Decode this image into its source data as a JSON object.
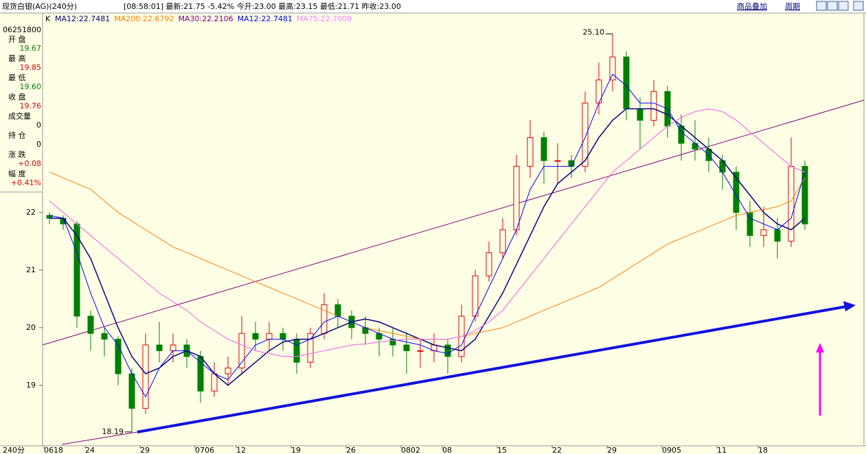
{
  "header": {
    "title": "现货白银(AG)(240分)",
    "quote": "[08:58:01] 最新:21.75 -5.42% 今开:23.00 最高:23.15 最低:21.71 昨收:23.00",
    "overlay_button": "商品叠加",
    "period_button": "周期"
  },
  "info_panel": {
    "code": "06251800",
    "rows": [
      {
        "label": "开 盘",
        "value": "19.67",
        "color": "#008000"
      },
      {
        "label": "最 高",
        "value": "19.85",
        "color": "#e00000"
      },
      {
        "label": "最 低",
        "value": "19.60",
        "color": "#008000"
      },
      {
        "label": "收 盘",
        "value": "19.76",
        "color": "#e00000"
      },
      {
        "label": "成交量",
        "value": "0",
        "color": "#000000"
      },
      {
        "label": "持 仓",
        "value": "0",
        "color": "#000000"
      },
      {
        "label": "涨 跌",
        "value": "+0.08",
        "color": "#e00000"
      },
      {
        "label": "幅 度",
        "value": "+0.41%",
        "color": "#e00000"
      }
    ]
  },
  "period_label": "240分",
  "chart_data": {
    "type": "candlestick",
    "legend_prefix": "K",
    "categories": [
      "0618",
      null,
      null,
      "24",
      null,
      null,
      null,
      "29",
      null,
      null,
      null,
      "0706",
      null,
      null,
      "12",
      null,
      null,
      null,
      "19",
      null,
      null,
      null,
      "26",
      null,
      null,
      null,
      "0802",
      null,
      null,
      "08",
      null,
      null,
      null,
      "15",
      null,
      null,
      null,
      "22",
      null,
      null,
      null,
      "29",
      null,
      null,
      null,
      "0905",
      null,
      null,
      null,
      "11",
      null,
      null,
      "18",
      null,
      null,
      null
    ],
    "candles": [
      [
        21.95,
        22.0,
        21.8,
        21.9
      ],
      [
        21.9,
        21.95,
        21.7,
        21.8
      ],
      [
        21.8,
        21.85,
        20.0,
        20.2
      ],
      [
        20.2,
        20.3,
        19.6,
        19.9
      ],
      [
        19.9,
        20.0,
        19.5,
        19.8
      ],
      [
        19.8,
        19.85,
        19.0,
        19.2
      ],
      [
        19.2,
        19.3,
        18.19,
        18.6
      ],
      [
        18.6,
        19.9,
        18.5,
        19.7
      ],
      [
        19.7,
        20.1,
        19.4,
        19.6
      ],
      [
        19.6,
        19.9,
        19.4,
        19.7
      ],
      [
        19.7,
        19.8,
        19.3,
        19.5
      ],
      [
        19.5,
        19.6,
        18.7,
        18.9
      ],
      [
        18.9,
        19.4,
        18.8,
        19.2
      ],
      [
        19.2,
        19.5,
        19.0,
        19.3
      ],
      [
        19.3,
        20.2,
        19.2,
        19.9
      ],
      [
        19.9,
        20.1,
        19.6,
        19.8
      ],
      [
        19.8,
        20.1,
        19.6,
        19.9
      ],
      [
        19.9,
        20.0,
        19.6,
        19.8
      ],
      [
        19.8,
        19.9,
        19.2,
        19.4
      ],
      [
        19.4,
        20.0,
        19.3,
        19.9
      ],
      [
        19.9,
        20.6,
        19.8,
        20.4
      ],
      [
        20.4,
        20.5,
        20.0,
        20.2
      ],
      [
        20.2,
        20.3,
        19.8,
        20.0
      ],
      [
        20.0,
        20.2,
        19.7,
        19.9
      ],
      [
        19.9,
        20.0,
        19.5,
        19.8
      ],
      [
        19.8,
        20.0,
        19.5,
        19.7
      ],
      [
        19.7,
        19.9,
        19.2,
        19.6
      ],
      [
        19.6,
        19.8,
        19.3,
        19.6
      ],
      [
        19.6,
        19.9,
        19.4,
        19.7
      ],
      [
        19.7,
        19.8,
        19.2,
        19.5
      ],
      [
        19.5,
        20.4,
        19.4,
        20.2
      ],
      [
        20.2,
        21.0,
        20.1,
        20.9
      ],
      [
        20.9,
        21.5,
        20.8,
        21.3
      ],
      [
        21.3,
        21.9,
        21.2,
        21.7
      ],
      [
        21.7,
        23.0,
        21.6,
        22.8
      ],
      [
        22.8,
        23.6,
        22.6,
        23.3
      ],
      [
        23.3,
        23.4,
        22.5,
        22.9
      ],
      [
        22.9,
        23.2,
        22.5,
        22.9
      ],
      [
        22.9,
        23.0,
        22.6,
        22.8
      ],
      [
        22.8,
        24.1,
        22.7,
        23.9
      ],
      [
        23.9,
        24.6,
        23.7,
        24.3
      ],
      [
        24.3,
        25.1,
        24.1,
        24.7
      ],
      [
        24.7,
        24.8,
        23.6,
        23.8
      ],
      [
        23.8,
        24.0,
        23.1,
        23.6
      ],
      [
        23.6,
        24.3,
        23.5,
        24.1
      ],
      [
        24.1,
        24.2,
        23.3,
        23.5
      ],
      [
        23.5,
        23.7,
        22.9,
        23.2
      ],
      [
        23.2,
        23.6,
        22.9,
        23.1
      ],
      [
        23.1,
        23.3,
        22.7,
        22.9
      ],
      [
        22.9,
        23.0,
        22.4,
        22.7
      ],
      [
        22.7,
        22.8,
        21.7,
        22.0
      ],
      [
        22.0,
        22.2,
        21.4,
        21.6
      ],
      [
        21.6,
        22.1,
        21.4,
        21.7
      ],
      [
        21.7,
        21.9,
        21.2,
        21.5
      ],
      [
        21.5,
        23.3,
        21.4,
        22.8
      ],
      [
        22.8,
        22.9,
        21.7,
        21.8
      ]
    ],
    "up_color": "#e00000",
    "down_color": "#008000",
    "series": [
      {
        "name": "MA12:22.7481",
        "color": "#000080",
        "values": [
          21.9,
          21.9,
          21.6,
          21.2,
          20.6,
          20.0,
          19.5,
          19.2,
          19.3,
          19.5,
          19.6,
          19.5,
          19.2,
          19.0,
          19.2,
          19.4,
          19.6,
          19.75,
          19.8,
          19.8,
          19.9,
          20.0,
          20.1,
          20.15,
          20.1,
          20.0,
          19.9,
          19.8,
          19.7,
          19.65,
          19.6,
          19.8,
          20.2,
          20.6,
          21.1,
          21.6,
          22.1,
          22.5,
          22.7,
          22.9,
          23.3,
          23.6,
          23.8,
          23.8,
          23.8,
          23.7,
          23.5,
          23.3,
          23.1,
          22.9,
          22.6,
          22.3,
          22.0,
          21.8,
          21.7,
          21.9
        ]
      },
      {
        "name": "MA200:22.6792",
        "color": "#ff8000",
        "values": [
          22.7,
          22.6,
          22.5,
          22.4,
          22.2,
          22.0,
          21.85,
          21.7,
          21.55,
          21.4,
          21.3,
          21.2,
          21.1,
          21.0,
          20.9,
          20.8,
          20.7,
          20.6,
          20.5,
          20.4,
          20.3,
          20.2,
          20.1,
          20.0,
          19.95,
          19.9,
          19.85,
          19.8,
          19.8,
          19.8,
          19.85,
          19.9,
          19.95,
          20.0,
          20.1,
          20.2,
          20.3,
          20.4,
          20.5,
          20.6,
          20.7,
          20.85,
          21.0,
          21.15,
          21.3,
          21.45,
          21.55,
          21.65,
          21.75,
          21.85,
          21.95,
          22.0,
          22.05,
          22.1,
          22.2,
          22.6
        ]
      },
      {
        "name": "MA30:22.2106",
        "color": "#800080",
        "values": [
          22.2,
          22.0,
          21.8,
          21.6,
          21.4,
          21.2,
          21.0,
          20.8,
          20.6,
          20.45,
          20.3,
          20.1,
          19.95,
          19.8,
          19.7,
          19.6,
          19.55,
          19.5,
          19.5,
          19.55,
          19.6,
          19.65,
          19.7,
          19.72,
          19.75,
          19.78,
          19.8,
          19.8,
          19.8,
          19.8,
          19.85,
          19.95,
          20.1,
          20.3,
          20.6,
          20.9,
          21.2,
          21.5,
          21.8,
          22.1,
          22.4,
          22.7,
          22.9,
          23.1,
          23.3,
          23.5,
          23.65,
          23.75,
          23.8,
          23.75,
          23.6,
          23.4,
          23.2,
          23.0,
          22.8,
          22.7
        ]
      },
      {
        "name": "MA12:22.7481",
        "color": "#0000ff",
        "values": [
          21.95,
          21.9,
          21.3,
          20.6,
          20.0,
          19.7,
          19.2,
          18.8,
          19.3,
          19.6,
          19.6,
          19.4,
          19.2,
          19.1,
          19.4,
          19.7,
          19.8,
          19.8,
          19.7,
          19.8,
          20.1,
          20.2,
          20.1,
          20.0,
          19.9,
          19.8,
          19.75,
          19.7,
          19.6,
          19.55,
          19.7,
          20.2,
          20.7,
          21.2,
          21.7,
          22.4,
          22.8,
          22.8,
          22.8,
          23.3,
          23.9,
          24.4,
          24.2,
          23.9,
          23.9,
          23.8,
          23.4,
          23.2,
          23.0,
          22.7,
          22.3,
          21.9,
          21.8,
          21.7,
          21.9,
          22.7
        ]
      },
      {
        "name": "MA75:22.7008",
        "color": "#ff80ff",
        "values": [
          22.2,
          22.0,
          21.8,
          21.6,
          21.4,
          21.2,
          21.0,
          20.8,
          20.6,
          20.45,
          20.3,
          20.1,
          19.95,
          19.8,
          19.7,
          19.6,
          19.55,
          19.5,
          19.5,
          19.55,
          19.6,
          19.65,
          19.7,
          19.72,
          19.75,
          19.78,
          19.8,
          19.8,
          19.8,
          19.8,
          19.85,
          19.95,
          20.1,
          20.3,
          20.6,
          20.9,
          21.2,
          21.5,
          21.8,
          22.1,
          22.4,
          22.7,
          22.9,
          23.1,
          23.3,
          23.5,
          23.65,
          23.75,
          23.8,
          23.75,
          23.6,
          23.4,
          23.2,
          23.0,
          22.8,
          22.7
        ]
      }
    ],
    "annotations": [
      {
        "text": "25.10",
        "index": 41,
        "value": 25.1
      },
      {
        "text": "18.19",
        "index": 6,
        "value": 18.19
      }
    ],
    "ylim": [
      17.95,
      25.45
    ],
    "yticks": [
      19,
      20,
      21,
      22
    ]
  }
}
